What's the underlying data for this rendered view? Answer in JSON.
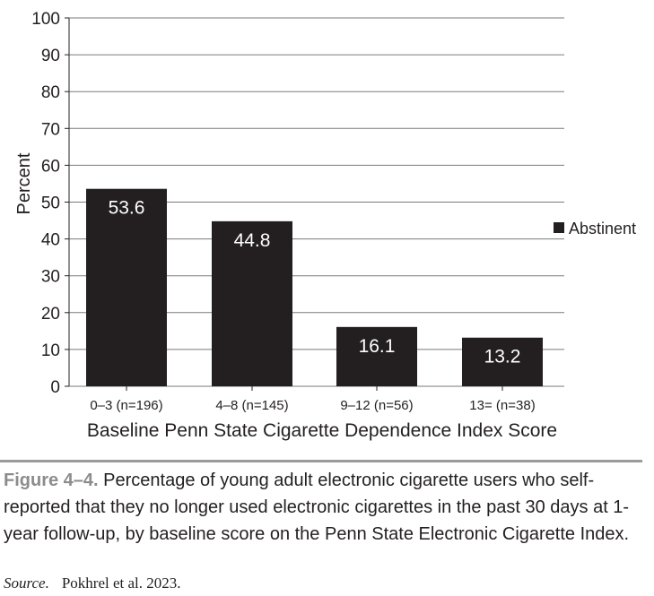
{
  "chart_data": {
    "type": "bar",
    "categories": [
      "0–3 (n=196)",
      "4–8 (n=145)",
      "9–12 (n=56)",
      "13= (n=38)"
    ],
    "series": [
      {
        "name": "Abstinent",
        "values": [
          53.6,
          44.8,
          16.1,
          13.2
        ],
        "color": "#231f20"
      }
    ],
    "xlabel": "Baseline Penn State Cigarette Dependence Index Score",
    "ylabel": "Percent",
    "ylim": [
      0,
      100
    ],
    "yticks": [
      0,
      10,
      20,
      30,
      40,
      50,
      60,
      70,
      80,
      90,
      100
    ],
    "grid": true,
    "legend_placement": "right",
    "bar_label_color": "#ffffff",
    "grid_color": "#7a7a7a"
  },
  "caption": {
    "figure_label": "Figure 4–4.",
    "text": "Percentage of young adult electronic cigarette users who self-reported that they no longer used electronic cigarettes in the past 30 days at 1-year follow-up, by baseline score on the Penn State Electronic Cigarette Index."
  },
  "source": {
    "label": "Source.",
    "text": "Pokhrel et al. 2023."
  }
}
